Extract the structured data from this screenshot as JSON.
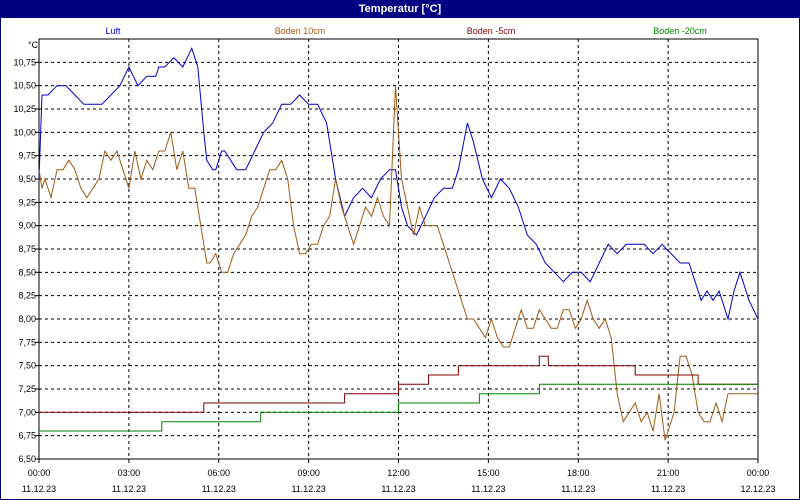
{
  "window": {
    "title": "Temperatur [°C]"
  },
  "chart_data": {
    "type": "line",
    "title": "Temperatur [°C]",
    "ylabel": "°C",
    "xlabel": "",
    "ylim": [
      6.5,
      11.0
    ],
    "xlim": [
      0,
      24
    ],
    "grid": true,
    "legend_position": "top",
    "yticks": [
      {
        "value": 6.5,
        "label": "6,50"
      },
      {
        "value": 6.75,
        "label": "6,75"
      },
      {
        "value": 7.0,
        "label": "7,00"
      },
      {
        "value": 7.25,
        "label": "7,25"
      },
      {
        "value": 7.5,
        "label": "7,50"
      },
      {
        "value": 7.75,
        "label": "7,75"
      },
      {
        "value": 8.0,
        "label": "8,00"
      },
      {
        "value": 8.25,
        "label": "8,25"
      },
      {
        "value": 8.5,
        "label": "8,50"
      },
      {
        "value": 8.75,
        "label": "8,75"
      },
      {
        "value": 9.0,
        "label": "9,00"
      },
      {
        "value": 9.25,
        "label": "9,25"
      },
      {
        "value": 9.5,
        "label": "9,50"
      },
      {
        "value": 9.75,
        "label": "9,75"
      },
      {
        "value": 10.0,
        "label": "10,00"
      },
      {
        "value": 10.25,
        "label": "10,25"
      },
      {
        "value": 10.5,
        "label": "10,50"
      },
      {
        "value": 10.75,
        "label": "10,75"
      }
    ],
    "xticks": [
      {
        "value": 0,
        "time": "00:00",
        "date": "11.12.23"
      },
      {
        "value": 3,
        "time": "03:00",
        "date": "11.12.23"
      },
      {
        "value": 6,
        "time": "06:00",
        "date": "11.12.23"
      },
      {
        "value": 9,
        "time": "09:00",
        "date": "11.12.23"
      },
      {
        "value": 12,
        "time": "12:00",
        "date": "11.12.23"
      },
      {
        "value": 15,
        "time": "15:00",
        "date": "11.12.23"
      },
      {
        "value": 18,
        "time": "18:00",
        "date": "11.12.23"
      },
      {
        "value": 21,
        "time": "21:00",
        "date": "11.12.23"
      },
      {
        "value": 24,
        "time": "00:00",
        "date": "12.12.23"
      }
    ],
    "series": [
      {
        "name": "Luft",
        "color": "#0000cc",
        "x": [
          0,
          0.1,
          0.3,
          0.6,
          0.9,
          1.2,
          1.5,
          1.8,
          2.1,
          2.4,
          2.7,
          3.0,
          3.3,
          3.6,
          3.9,
          4.0,
          4.2,
          4.5,
          4.8,
          5.1,
          5.3,
          5.5,
          5.6,
          5.8,
          5.9,
          6.1,
          6.2,
          6.4,
          6.6,
          6.9,
          7.2,
          7.5,
          7.8,
          8.1,
          8.4,
          8.7,
          9.0,
          9.1,
          9.3,
          9.6,
          9.9,
          10.2,
          10.5,
          10.8,
          11.1,
          11.4,
          11.7,
          11.9,
          12.1,
          12.3,
          12.6,
          12.9,
          13.2,
          13.5,
          13.8,
          14.0,
          14.3,
          14.5,
          14.8,
          15.1,
          15.4,
          15.7,
          16.0,
          16.3,
          16.6,
          16.9,
          17.2,
          17.5,
          17.8,
          18.1,
          18.4,
          18.7,
          19.0,
          19.3,
          19.6,
          19.9,
          20.2,
          20.5,
          20.8,
          21.1,
          21.4,
          21.7,
          21.9,
          22.1,
          22.3,
          22.5,
          22.7,
          23.0,
          23.2,
          23.4,
          23.7,
          24.0
        ],
        "y": [
          9.5,
          10.4,
          10.4,
          10.5,
          10.5,
          10.4,
          10.3,
          10.3,
          10.3,
          10.4,
          10.5,
          10.7,
          10.5,
          10.6,
          10.6,
          10.7,
          10.7,
          10.8,
          10.7,
          10.9,
          10.7,
          10.0,
          9.7,
          9.6,
          9.6,
          9.8,
          9.8,
          9.7,
          9.6,
          9.6,
          9.8,
          10.0,
          10.1,
          10.3,
          10.3,
          10.4,
          10.3,
          10.3,
          10.3,
          10.1,
          9.5,
          9.1,
          9.3,
          9.4,
          9.3,
          9.5,
          9.6,
          9.6,
          9.2,
          9.0,
          8.9,
          9.1,
          9.3,
          9.4,
          9.4,
          9.6,
          10.1,
          9.9,
          9.5,
          9.3,
          9.5,
          9.4,
          9.2,
          8.9,
          8.8,
          8.6,
          8.5,
          8.4,
          8.5,
          8.5,
          8.4,
          8.6,
          8.8,
          8.7,
          8.8,
          8.8,
          8.8,
          8.7,
          8.8,
          8.7,
          8.6,
          8.6,
          8.4,
          8.2,
          8.3,
          8.2,
          8.3,
          8.0,
          8.3,
          8.5,
          8.2,
          8.0
        ]
      },
      {
        "name": "Boden 10cm",
        "color": "#a05a14",
        "x": [
          0,
          0.1,
          0.2,
          0.4,
          0.6,
          0.8,
          1.0,
          1.2,
          1.4,
          1.6,
          1.8,
          2.0,
          2.2,
          2.4,
          2.6,
          2.8,
          3.0,
          3.2,
          3.4,
          3.6,
          3.8,
          4.0,
          4.2,
          4.4,
          4.6,
          4.8,
          5.0,
          5.2,
          5.4,
          5.6,
          5.7,
          5.9,
          6.1,
          6.3,
          6.5,
          6.7,
          6.9,
          7.1,
          7.3,
          7.5,
          7.7,
          7.9,
          8.1,
          8.3,
          8.5,
          8.7,
          8.9,
          9.1,
          9.3,
          9.5,
          9.7,
          9.9,
          10.1,
          10.3,
          10.5,
          10.7,
          10.9,
          11.1,
          11.3,
          11.5,
          11.7,
          11.9,
          12.1,
          12.3,
          12.5,
          12.7,
          12.9,
          13.1,
          13.3,
          13.5,
          13.7,
          13.9,
          14.1,
          14.3,
          14.5,
          14.7,
          14.9,
          15.1,
          15.3,
          15.5,
          15.7,
          15.9,
          16.1,
          16.3,
          16.5,
          16.7,
          16.9,
          17.1,
          17.3,
          17.5,
          17.7,
          17.9,
          18.1,
          18.3,
          18.5,
          18.7,
          18.9,
          19.1,
          19.3,
          19.5,
          19.7,
          19.9,
          20.1,
          20.3,
          20.5,
          20.7,
          20.9,
          21.0,
          21.2,
          21.4,
          21.6,
          21.8,
          22.0,
          22.2,
          22.4,
          22.6,
          22.8,
          23.0,
          23.2,
          23.4,
          23.6,
          23.8,
          24.0
        ],
        "y": [
          9.6,
          9.4,
          9.5,
          9.3,
          9.6,
          9.6,
          9.7,
          9.6,
          9.4,
          9.3,
          9.4,
          9.5,
          9.8,
          9.7,
          9.8,
          9.6,
          9.4,
          9.8,
          9.5,
          9.7,
          9.6,
          9.8,
          9.8,
          10.0,
          9.6,
          9.8,
          9.4,
          9.4,
          9.0,
          8.6,
          8.6,
          8.7,
          8.5,
          8.5,
          8.7,
          8.8,
          8.9,
          9.1,
          9.2,
          9.4,
          9.6,
          9.6,
          9.7,
          9.5,
          9.0,
          8.7,
          8.7,
          8.8,
          8.8,
          9.0,
          9.1,
          9.5,
          9.2,
          9.0,
          8.8,
          9.0,
          9.2,
          9.1,
          9.3,
          9.1,
          9.0,
          10.5,
          9.5,
          9.2,
          8.9,
          9.2,
          9.0,
          9.0,
          9.0,
          8.8,
          8.6,
          8.4,
          8.2,
          8.0,
          8.0,
          7.9,
          7.8,
          8.0,
          7.8,
          7.7,
          7.7,
          7.9,
          8.1,
          7.9,
          7.9,
          8.1,
          8.0,
          7.9,
          7.9,
          8.1,
          8.1,
          7.9,
          8.0,
          8.2,
          8.0,
          7.9,
          8.0,
          7.8,
          7.2,
          6.9,
          7.0,
          7.1,
          6.9,
          7.0,
          6.8,
          7.2,
          6.7,
          6.8,
          7.0,
          7.6,
          7.6,
          7.4,
          7.0,
          6.9,
          6.9,
          7.1,
          6.9,
          7.2,
          7.2,
          7.2,
          7.2,
          7.2,
          7.2
        ],
        "note_dummy": null
      },
      {
        "name": "Boden -5cm",
        "color": "#800000",
        "x": [
          0,
          5.5,
          5.5,
          10.2,
          10.2,
          12.0,
          12.0,
          13.0,
          13.0,
          14.0,
          14.0,
          16.7,
          16.7,
          17.0,
          17.0,
          19.9,
          19.9,
          22.0,
          22.0,
          22.3,
          22.3,
          24.0
        ],
        "y": [
          7.0,
          7.0,
          7.1,
          7.1,
          7.2,
          7.2,
          7.3,
          7.3,
          7.4,
          7.4,
          7.5,
          7.5,
          7.6,
          7.6,
          7.5,
          7.5,
          7.4,
          7.4,
          7.3,
          7.3,
          7.3,
          7.3
        ]
      },
      {
        "name": "Boden -20cm",
        "color": "#008000",
        "x": [
          0,
          4.1,
          4.1,
          7.4,
          7.4,
          12.0,
          12.0,
          14.7,
          14.7,
          16.7,
          16.7,
          24.0
        ],
        "y": [
          6.8,
          6.8,
          6.9,
          6.9,
          7.0,
          7.0,
          7.1,
          7.1,
          7.2,
          7.2,
          7.3,
          7.3
        ]
      }
    ]
  }
}
